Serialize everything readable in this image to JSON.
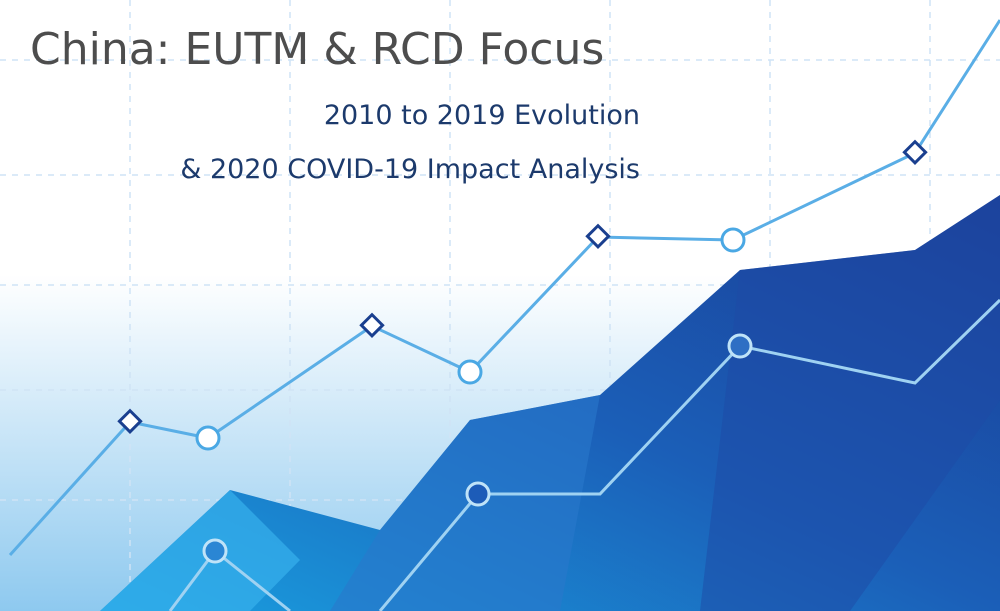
{
  "header": {
    "title": "China: EUTM & RCD Focus",
    "subtitle": [
      "2010 to 2019 Evolution",
      "& 2020 COVID-19 Impact Analysis"
    ]
  }
}
